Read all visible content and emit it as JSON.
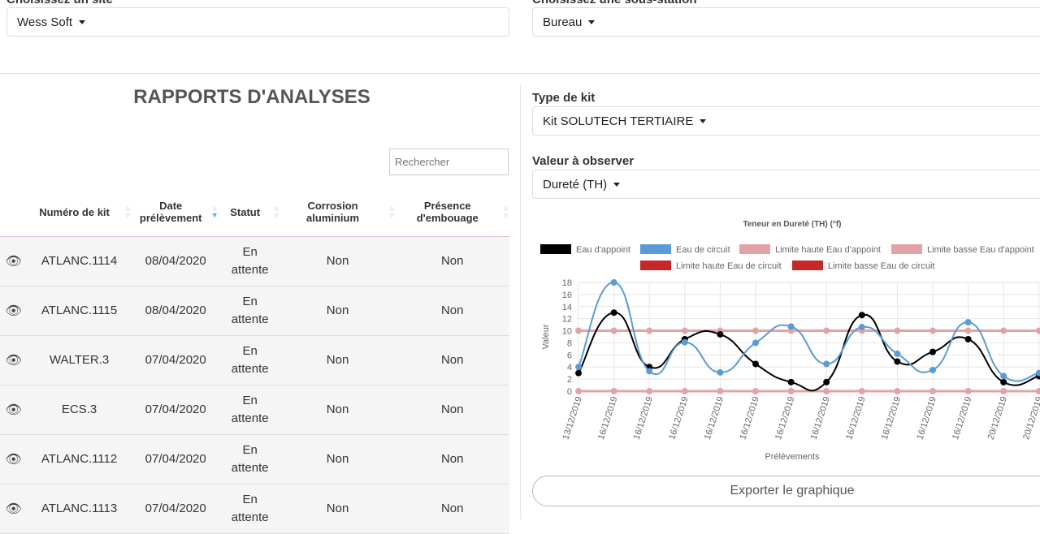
{
  "site": {
    "label": "Choisissez un site",
    "value": "Wess Soft"
  },
  "substation": {
    "label": "Choisissez une sous-station",
    "value": "Bureau"
  },
  "title": "RAPPORTS D'ANALYSES",
  "search": {
    "placeholder": "Rechercher"
  },
  "table": {
    "headers": [
      "",
      "Numéro de kit",
      "Date prélèvement",
      "Statut",
      "Corrosion aluminium",
      "Présence d'embouage"
    ],
    "rows": [
      {
        "kit": "ATLANC.1114",
        "date": "08/04/2020",
        "statut": "En attente",
        "corrosion": "Non",
        "embouage": "Non"
      },
      {
        "kit": "ATLANC.1115",
        "date": "08/04/2020",
        "statut": "En attente",
        "corrosion": "Non",
        "embouage": "Non"
      },
      {
        "kit": "WALTER.3",
        "date": "07/04/2020",
        "statut": "En attente",
        "corrosion": "Non",
        "embouage": "Non"
      },
      {
        "kit": "ECS.3",
        "date": "07/04/2020",
        "statut": "En attente",
        "corrosion": "Non",
        "embouage": "Non"
      },
      {
        "kit": "ATLANC.1112",
        "date": "07/04/2020",
        "statut": "En attente",
        "corrosion": "Non",
        "embouage": "Non"
      },
      {
        "kit": "ATLANC.1113",
        "date": "07/04/2020",
        "statut": "En attente",
        "corrosion": "Non",
        "embouage": "Non"
      }
    ]
  },
  "kit_type": {
    "label": "Type de kit",
    "value": "Kit SOLUTECH TERTIAIRE"
  },
  "observe": {
    "label": "Valeur à observer",
    "value": "Dureté (TH)"
  },
  "export_label": "Exporter le graphique",
  "chart_data": {
    "type": "line",
    "title": "Teneur en Dureté (TH) (°f)",
    "xlabel": "Prélèvements",
    "ylabel": "Valeur",
    "ylim": [
      0,
      18
    ],
    "yticks": [
      0,
      2,
      4,
      6,
      8,
      10,
      12,
      14,
      16,
      18
    ],
    "grid": true,
    "legend": "top",
    "categories": [
      "13/12/2019",
      "16/12/2019",
      "16/12/2019",
      "16/12/2019",
      "16/12/2019",
      "16/12/2019",
      "16/12/2019",
      "16/12/2019",
      "16/12/2019",
      "16/12/2019",
      "16/12/2019",
      "16/12/2019",
      "20/12/2019",
      "20/12/2019"
    ],
    "series": [
      {
        "name": "Eau d'appoint",
        "color": "#000000",
        "values": [
          3,
          13,
          4,
          8.6,
          9.4,
          4.5,
          1.5,
          1.5,
          12.6,
          4.9,
          6.5,
          8.6,
          1.5,
          2.5
        ]
      },
      {
        "name": "Eau de circuit",
        "color": "#5b9bd5",
        "values": [
          4,
          18,
          3.3,
          8.1,
          3.1,
          8,
          10.7,
          4.5,
          10.6,
          6.2,
          3.5,
          11.4,
          2.5,
          3
        ]
      },
      {
        "name": "Limite haute Eau d'appoint",
        "color": "#e3a3a6",
        "values": [
          10,
          10,
          10,
          10,
          10,
          10,
          10,
          10,
          10,
          10,
          10,
          10,
          10,
          10
        ]
      },
      {
        "name": "Limite basse Eau d'appoint",
        "color": "#e3a3a6",
        "values": [
          0,
          0,
          0,
          0,
          0,
          0,
          0,
          0,
          0,
          0,
          0,
          0,
          0,
          0
        ]
      },
      {
        "name": "Limite haute Eau de circuit",
        "color": "#c62828",
        "values": [
          10,
          10,
          10,
          10,
          10,
          10,
          10,
          10,
          10,
          10,
          10,
          10,
          10,
          10
        ]
      },
      {
        "name": "Limite basse Eau de circuit",
        "color": "#c62828",
        "values": [
          0,
          0,
          0,
          0,
          0,
          0,
          0,
          0,
          0,
          0,
          0,
          0,
          0,
          0
        ]
      }
    ]
  }
}
